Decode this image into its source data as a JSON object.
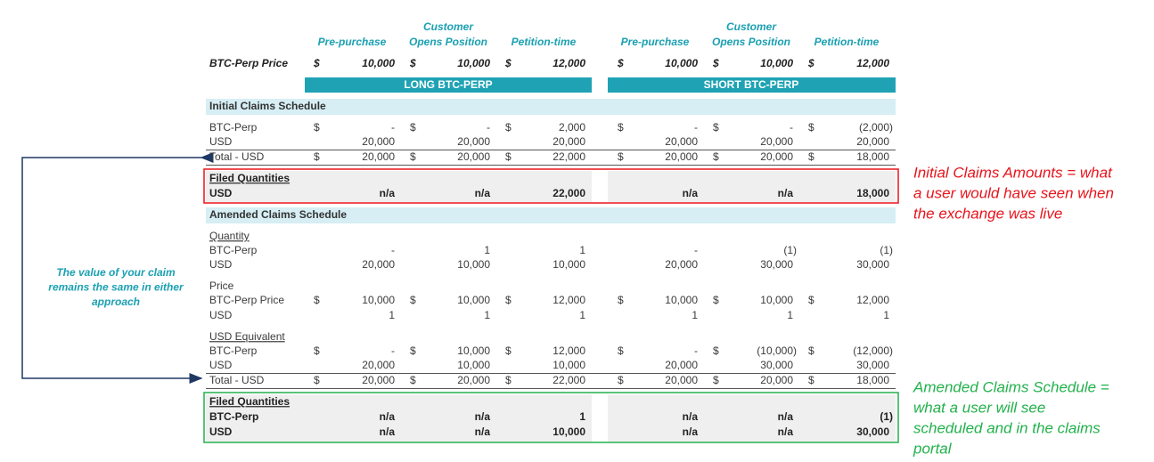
{
  "columns": [
    {
      "lines": [
        "Pre-purchase"
      ]
    },
    {
      "lines": [
        "Customer",
        "Opens Position"
      ]
    },
    {
      "lines": [
        "Petition-time"
      ]
    },
    {
      "lines": [
        "Pre-purchase"
      ]
    },
    {
      "lines": [
        "Customer",
        "Opens Position"
      ]
    },
    {
      "lines": [
        "Petition-time"
      ]
    }
  ],
  "price_row": {
    "label": "BTC-Perp Price",
    "cells": [
      {
        "currency": "$",
        "value": "10,000"
      },
      {
        "currency": "$",
        "value": "10,000"
      },
      {
        "currency": "$",
        "value": "12,000"
      },
      {
        "currency": "$",
        "value": "10,000"
      },
      {
        "currency": "$",
        "value": "10,000"
      },
      {
        "currency": "$",
        "value": "12,000"
      }
    ]
  },
  "bands": [
    "LONG BTC-PERP",
    "SHORT BTC-PERP"
  ],
  "initial": {
    "title": "Initial Claims Schedule",
    "rows": [
      {
        "label": "BTC-Perp",
        "cells": [
          {
            "currency": "$",
            "value": "-"
          },
          {
            "currency": "$",
            "value": "-"
          },
          {
            "currency": "$",
            "value": "2,000"
          },
          {
            "currency": "$",
            "value": "-"
          },
          {
            "currency": "$",
            "value": "-"
          },
          {
            "currency": "$",
            "value": "(2,000)"
          }
        ]
      },
      {
        "label": "USD",
        "cells": [
          {
            "value": "20,000"
          },
          {
            "value": "20,000"
          },
          {
            "value": "20,000"
          },
          {
            "value": "20,000"
          },
          {
            "value": "20,000"
          },
          {
            "value": "20,000"
          }
        ]
      },
      {
        "label": "Total - USD",
        "cells": [
          {
            "currency": "$",
            "value": "20,000"
          },
          {
            "currency": "$",
            "value": "20,000"
          },
          {
            "currency": "$",
            "value": "22,000"
          },
          {
            "currency": "$",
            "value": "20,000"
          },
          {
            "currency": "$",
            "value": "20,000"
          },
          {
            "currency": "$",
            "value": "18,000"
          }
        ]
      }
    ],
    "filed": {
      "title": "Filed Quantities",
      "rows": [
        {
          "label": "USD",
          "cells": [
            {
              "value": "n/a"
            },
            {
              "value": "n/a"
            },
            {
              "value": "22,000"
            },
            {
              "value": "n/a"
            },
            {
              "value": "n/a"
            },
            {
              "value": "18,000"
            }
          ]
        }
      ]
    }
  },
  "amended": {
    "title": "Amended Claims Schedule",
    "groups": [
      {
        "title": "Quantity",
        "rows": [
          {
            "label": "BTC-Perp",
            "cells": [
              {
                "value": "-"
              },
              {
                "value": "1"
              },
              {
                "value": "1"
              },
              {
                "value": "-"
              },
              {
                "value": "(1)"
              },
              {
                "value": "(1)"
              }
            ]
          },
          {
            "label": "USD",
            "cells": [
              {
                "value": "20,000"
              },
              {
                "value": "10,000"
              },
              {
                "value": "10,000"
              },
              {
                "value": "20,000"
              },
              {
                "value": "30,000"
              },
              {
                "value": "30,000"
              }
            ]
          }
        ]
      },
      {
        "title": "Price",
        "rows": [
          {
            "label": "BTC-Perp Price",
            "cells": [
              {
                "currency": "$",
                "value": "10,000"
              },
              {
                "currency": "$",
                "value": "10,000"
              },
              {
                "currency": "$",
                "value": "12,000"
              },
              {
                "currency": "$",
                "value": "10,000"
              },
              {
                "currency": "$",
                "value": "10,000"
              },
              {
                "currency": "$",
                "value": "12,000"
              }
            ]
          },
          {
            "label": "USD",
            "cells": [
              {
                "value": "1"
              },
              {
                "value": "1"
              },
              {
                "value": "1"
              },
              {
                "value": "1"
              },
              {
                "value": "1"
              },
              {
                "value": "1"
              }
            ]
          }
        ]
      },
      {
        "title": "USD Equivalent",
        "rows": [
          {
            "label": "BTC-Perp",
            "cells": [
              {
                "currency": "$",
                "value": "-"
              },
              {
                "currency": "$",
                "value": "10,000"
              },
              {
                "currency": "$",
                "value": "12,000"
              },
              {
                "currency": "$",
                "value": "-"
              },
              {
                "currency": "$",
                "value": "(10,000)"
              },
              {
                "currency": "$",
                "value": "(12,000)"
              }
            ]
          },
          {
            "label": "USD",
            "cells": [
              {
                "value": "20,000"
              },
              {
                "value": "10,000"
              },
              {
                "value": "10,000"
              },
              {
                "value": "20,000"
              },
              {
                "value": "30,000"
              },
              {
                "value": "30,000"
              }
            ]
          }
        ]
      }
    ],
    "total": {
      "label": "Total - USD",
      "cells": [
        {
          "currency": "$",
          "value": "20,000"
        },
        {
          "currency": "$",
          "value": "20,000"
        },
        {
          "currency": "$",
          "value": "22,000"
        },
        {
          "currency": "$",
          "value": "20,000"
        },
        {
          "currency": "$",
          "value": "20,000"
        },
        {
          "currency": "$",
          "value": "18,000"
        }
      ]
    },
    "filed": {
      "title": "Filed Quantities",
      "rows": [
        {
          "label": "BTC-Perp",
          "cells": [
            {
              "value": "n/a"
            },
            {
              "value": "n/a"
            },
            {
              "value": "1"
            },
            {
              "value": "n/a"
            },
            {
              "value": "n/a"
            },
            {
              "value": "(1)"
            }
          ]
        },
        {
          "label": "USD",
          "cells": [
            {
              "value": "n/a"
            },
            {
              "value": "n/a"
            },
            {
              "value": "10,000"
            },
            {
              "value": "n/a"
            },
            {
              "value": "n/a"
            },
            {
              "value": "30,000"
            }
          ]
        }
      ]
    }
  },
  "note": {
    "lines": [
      "The value of your claim",
      "remains the same in either",
      "approach"
    ]
  },
  "annotations": [
    {
      "lines": [
        "Initial Claims Amounts = what",
        "a user would have seen when",
        "the exchange was live"
      ]
    },
    {
      "lines": [
        "Amended Claims Schedule =",
        "what a user will see",
        "scheduled and in the claims",
        "portal"
      ]
    }
  ]
}
